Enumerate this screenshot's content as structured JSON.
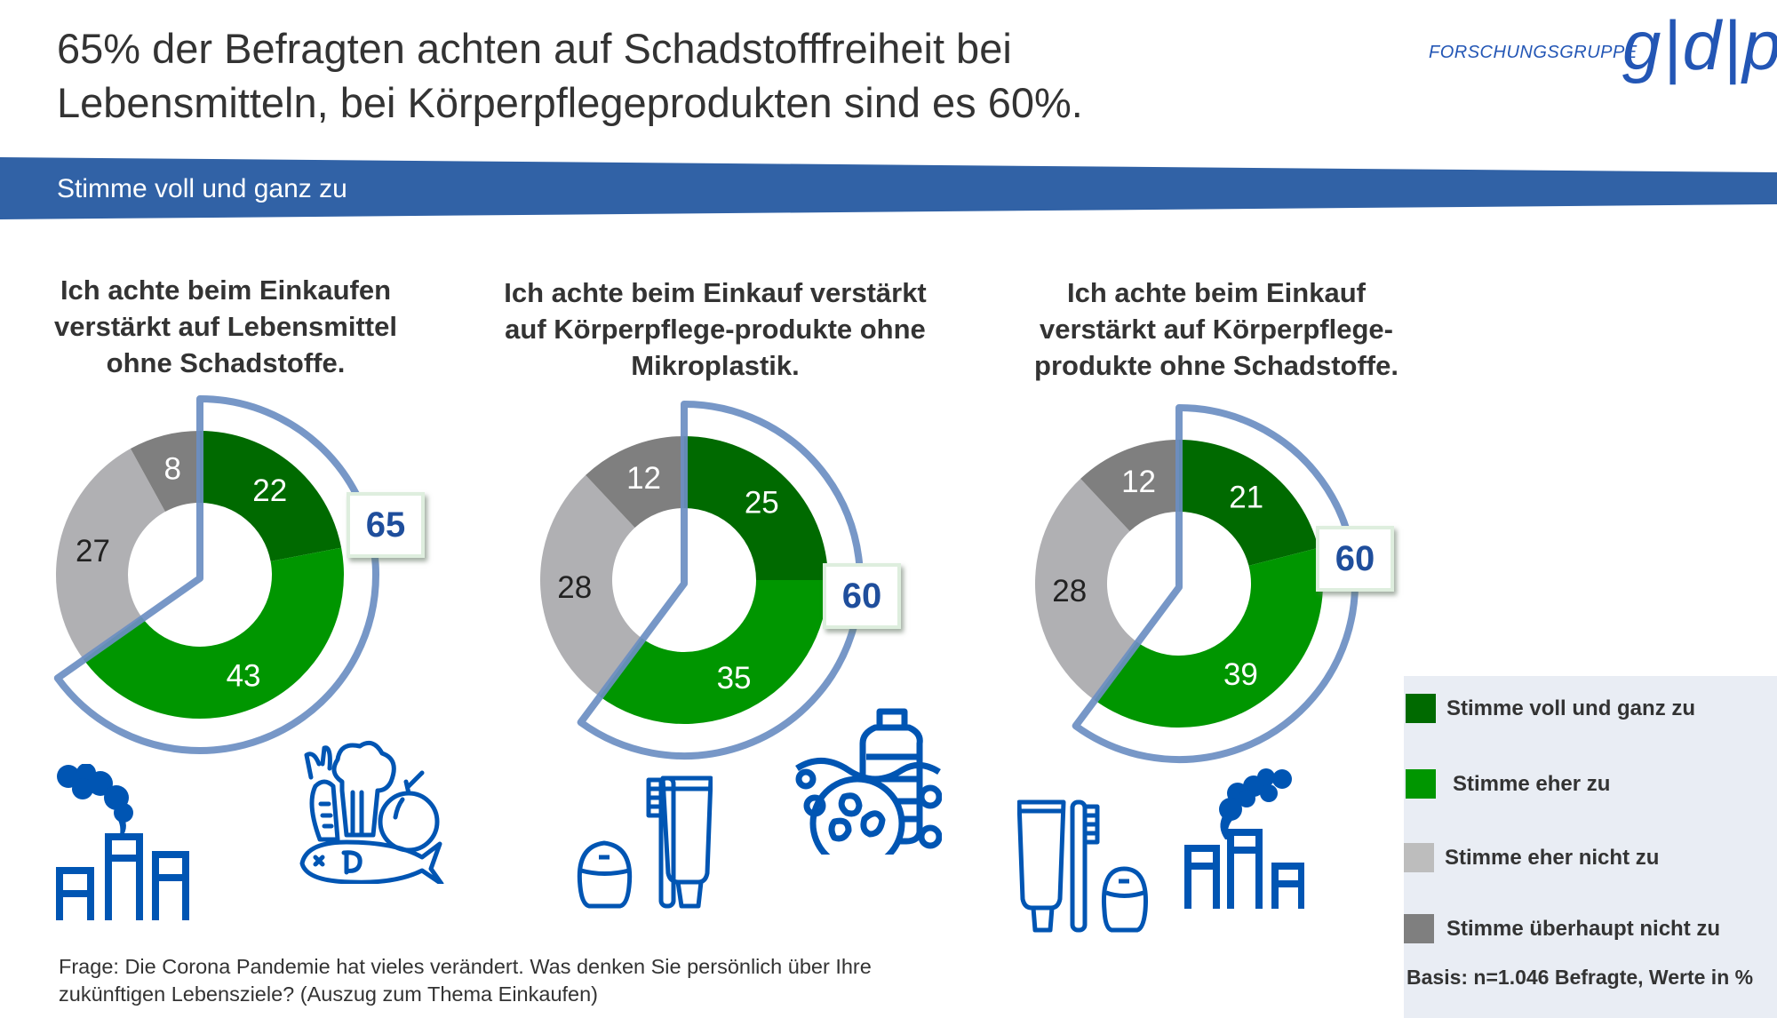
{
  "header": {
    "title_line1": "65% der Befragten achten auf Schadstofffreiheit bei",
    "title_line2": "Lebensmitteln, bei Körperpflegeprodukten sind es 60%.",
    "logo_text": "FORSCHUNGSGRUPPE",
    "logo_mark": "g|d|p"
  },
  "banner": {
    "label": "Stimme voll und ganz zu",
    "color": "#3162a6"
  },
  "colors": {
    "highlight": "#6b8ec2",
    "value_text": "#1f4e9c"
  },
  "legend": {
    "items": [
      {
        "label": "Stimme voll und ganz zu",
        "color": "#006a00"
      },
      {
        "label": "Stimme eher zu",
        "color": "#009600"
      },
      {
        "label": "Stimme eher nicht zu",
        "color": "#bdbdbd"
      },
      {
        "label": "Stimme überhaupt nicht zu",
        "color": "#7f7f7f"
      }
    ],
    "basis": "Basis: n=1.046 Befragte, Werte in %"
  },
  "footer": {
    "line1": "Frage: Die Corona Pandemie hat vieles verändert. Was denken Sie persönlich über Ihre",
    "line2": "zukünftigen Lebensziele? (Auszug zum Thema Einkaufen)"
  },
  "chart_data": [
    {
      "type": "pie",
      "title": [
        "Ich achte beim Einkaufen",
        "verstärkt auf Lebensmittel",
        "ohne Schadstoffe."
      ],
      "categories": [
        "Stimme voll und ganz zu",
        "Stimme eher zu",
        "Stimme eher nicht zu",
        "Stimme überhaupt nicht zu"
      ],
      "values": [
        22,
        43,
        27,
        8
      ],
      "highlight_total": 65,
      "icons": [
        "factory-icon",
        "groceries-icon"
      ]
    },
    {
      "type": "pie",
      "title": [
        "Ich achte beim Einkauf verstärkt",
        "auf Körperpflege-produkte ohne",
        "Mikroplastik."
      ],
      "categories": [
        "Stimme voll und ganz zu",
        "Stimme eher zu",
        "Stimme eher nicht zu",
        "Stimme überhaupt nicht zu"
      ],
      "values": [
        25,
        35,
        28,
        12
      ],
      "highlight_total": 60,
      "icons": [
        "dental-care-icon",
        "microplastic-icon"
      ]
    },
    {
      "type": "pie",
      "title": [
        "Ich achte beim Einkauf",
        "verstärkt auf Körperpflege-",
        "produkte ohne Schadstoffe."
      ],
      "categories": [
        "Stimme voll und ganz zu",
        "Stimme eher zu",
        "Stimme eher nicht zu",
        "Stimme überhaupt nicht zu"
      ],
      "values": [
        21,
        39,
        28,
        12
      ],
      "highlight_total": 60,
      "icons": [
        "dental-care-icon",
        "factory-icon"
      ]
    }
  ]
}
